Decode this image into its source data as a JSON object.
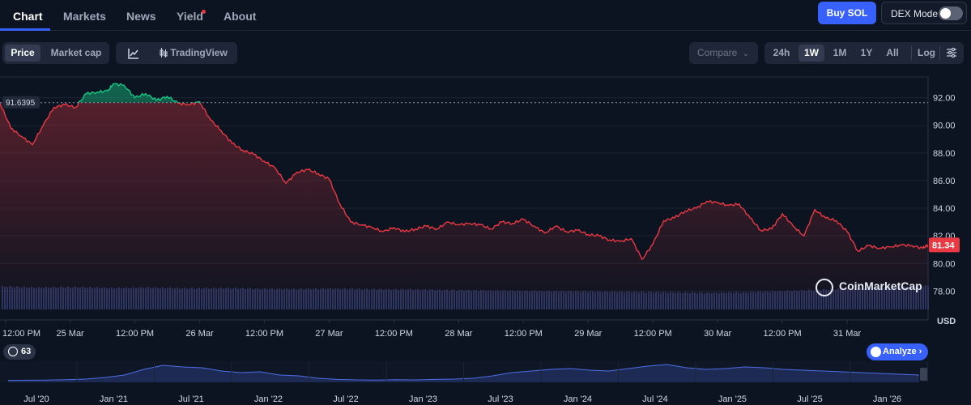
{
  "tabs": [
    {
      "label": "Chart",
      "active": true
    },
    {
      "label": "Markets",
      "active": false
    },
    {
      "label": "News",
      "active": false
    },
    {
      "label": "Yield",
      "active": false,
      "dot": true
    },
    {
      "label": "About",
      "active": false
    }
  ],
  "buy_label": "Buy SOL",
  "dex_label": "DEX Mode",
  "dex_on": false,
  "view_toggle": {
    "items": [
      "Price",
      "Market cap"
    ],
    "active": "Price"
  },
  "chart_mode": {
    "line_icon": "line-chart-icon",
    "tradingview_label": "TradingView",
    "tradingview_icon": "candlestick-icon"
  },
  "compare_label": "Compare",
  "ranges": {
    "items": [
      "24h",
      "1W",
      "1M",
      "1Y",
      "All"
    ],
    "active": "1W"
  },
  "log_label": "Log",
  "settings_icon": "sliders-icon",
  "watermark": "CoinMarketCap",
  "counter": "63",
  "analyze_label": "Analyze",
  "colors": {
    "up": "#16c784",
    "down": "#ea3943",
    "accent": "#3861fb",
    "volume": "#2a3560"
  },
  "chart_data": {
    "type": "line",
    "currency": "USD",
    "reference_price": 91.6395,
    "reference_label": "91.6395",
    "current_price_label": "81.34",
    "ylim": [
      76.5,
      93.5
    ],
    "y_ticks": [
      "92.00",
      "90.00",
      "88.00",
      "86.00",
      "84.00",
      "82.00",
      "80.00",
      "78.00"
    ],
    "y_tick_values": [
      92,
      90,
      88,
      86,
      84,
      82,
      80,
      78
    ],
    "x_ticks": [
      "12:00 PM",
      "25 Mar",
      "12:00 PM",
      "26 Mar",
      "12:00 PM",
      "27 Mar",
      "12:00 PM",
      "28 Mar",
      "12:00 PM",
      "29 Mar",
      "12:00 PM",
      "30 Mar",
      "12:00 PM",
      "31 Mar"
    ],
    "x_tick_hours": [
      0,
      12,
      24,
      36,
      48,
      60,
      72,
      84,
      96,
      108,
      120,
      132,
      144,
      156
    ],
    "x_start_hour": -1,
    "x_end_hour": 171,
    "series": [
      {
        "hours": [
          -1,
          1,
          3,
          5,
          7,
          9,
          11,
          13,
          15,
          17,
          19,
          20,
          22,
          24,
          26,
          28,
          30,
          32,
          34,
          36,
          38,
          40,
          42,
          44,
          46,
          48,
          50,
          52,
          54,
          56,
          58,
          60,
          62,
          64,
          66,
          68,
          70,
          72,
          74,
          76,
          78,
          80,
          82,
          84,
          86,
          88,
          90,
          92,
          94,
          96,
          98,
          100,
          102,
          104,
          106,
          108,
          110,
          112,
          114,
          116,
          118,
          120,
          122,
          124,
          126,
          128,
          130,
          132,
          134,
          136,
          138,
          140,
          142,
          144,
          146,
          148,
          150,
          152,
          154,
          156,
          158,
          160,
          162,
          164,
          166,
          168,
          170,
          171
        ],
        "values": [
          91.6,
          89.8,
          89.2,
          88.6,
          90.0,
          91.3,
          91.5,
          91.3,
          92.3,
          92.4,
          92.5,
          93.0,
          92.9,
          92.0,
          92.3,
          91.8,
          92.1,
          91.6,
          91.5,
          91.7,
          90.4,
          89.6,
          88.7,
          88.2,
          87.9,
          87.4,
          86.9,
          85.8,
          86.6,
          86.8,
          86.5,
          86.1,
          84.3,
          83.0,
          82.8,
          82.6,
          82.3,
          82.6,
          82.3,
          82.5,
          82.7,
          82.5,
          83.0,
          82.8,
          82.9,
          82.8,
          82.5,
          83.0,
          82.9,
          83.2,
          82.7,
          82.2,
          82.7,
          82.3,
          82.4,
          82.1,
          82.0,
          81.7,
          81.6,
          81.8,
          80.3,
          81.4,
          83.1,
          83.3,
          83.8,
          84.0,
          84.5,
          84.4,
          84.2,
          84.3,
          83.3,
          82.4,
          82.5,
          83.6,
          82.7,
          82.0,
          83.9,
          83.3,
          83.1,
          82.3,
          80.9,
          81.3,
          81.1,
          81.2,
          81.34,
          81.3,
          81.1,
          81.34
        ]
      }
    ],
    "volume_profile": [
      0.95,
      0.9,
      0.92,
      0.88,
      0.9,
      0.87,
      0.88,
      0.85,
      0.84,
      0.86,
      0.83,
      0.82,
      0.8,
      0.78,
      0.76,
      0.75,
      0.73,
      0.72,
      0.7,
      0.68,
      0.7,
      0.75,
      0.8,
      0.86,
      0.92,
      0.97
    ],
    "navigator": {
      "x_ticks": [
        "Jul '20",
        "Jan '21",
        "Jul '21",
        "Jan '22",
        "Jul '22",
        "Jan '23",
        "Jul '23",
        "Jan '24",
        "Jul '24",
        "Jan '25",
        "Jul '25",
        "Jan '26"
      ],
      "values": [
        0.02,
        0.03,
        0.04,
        0.06,
        0.1,
        0.2,
        0.35,
        0.7,
        0.95,
        0.85,
        0.8,
        0.6,
        0.5,
        0.55,
        0.35,
        0.3,
        0.15,
        0.08,
        0.05,
        0.04,
        0.06,
        0.05,
        0.08,
        0.1,
        0.15,
        0.3,
        0.5,
        0.6,
        0.7,
        0.75,
        0.65,
        0.6,
        0.75,
        0.9,
        1.0,
        0.8,
        0.7,
        0.75,
        0.85,
        0.8,
        0.7,
        0.65,
        0.6,
        0.55,
        0.5,
        0.45,
        0.4,
        0.35
      ]
    }
  }
}
